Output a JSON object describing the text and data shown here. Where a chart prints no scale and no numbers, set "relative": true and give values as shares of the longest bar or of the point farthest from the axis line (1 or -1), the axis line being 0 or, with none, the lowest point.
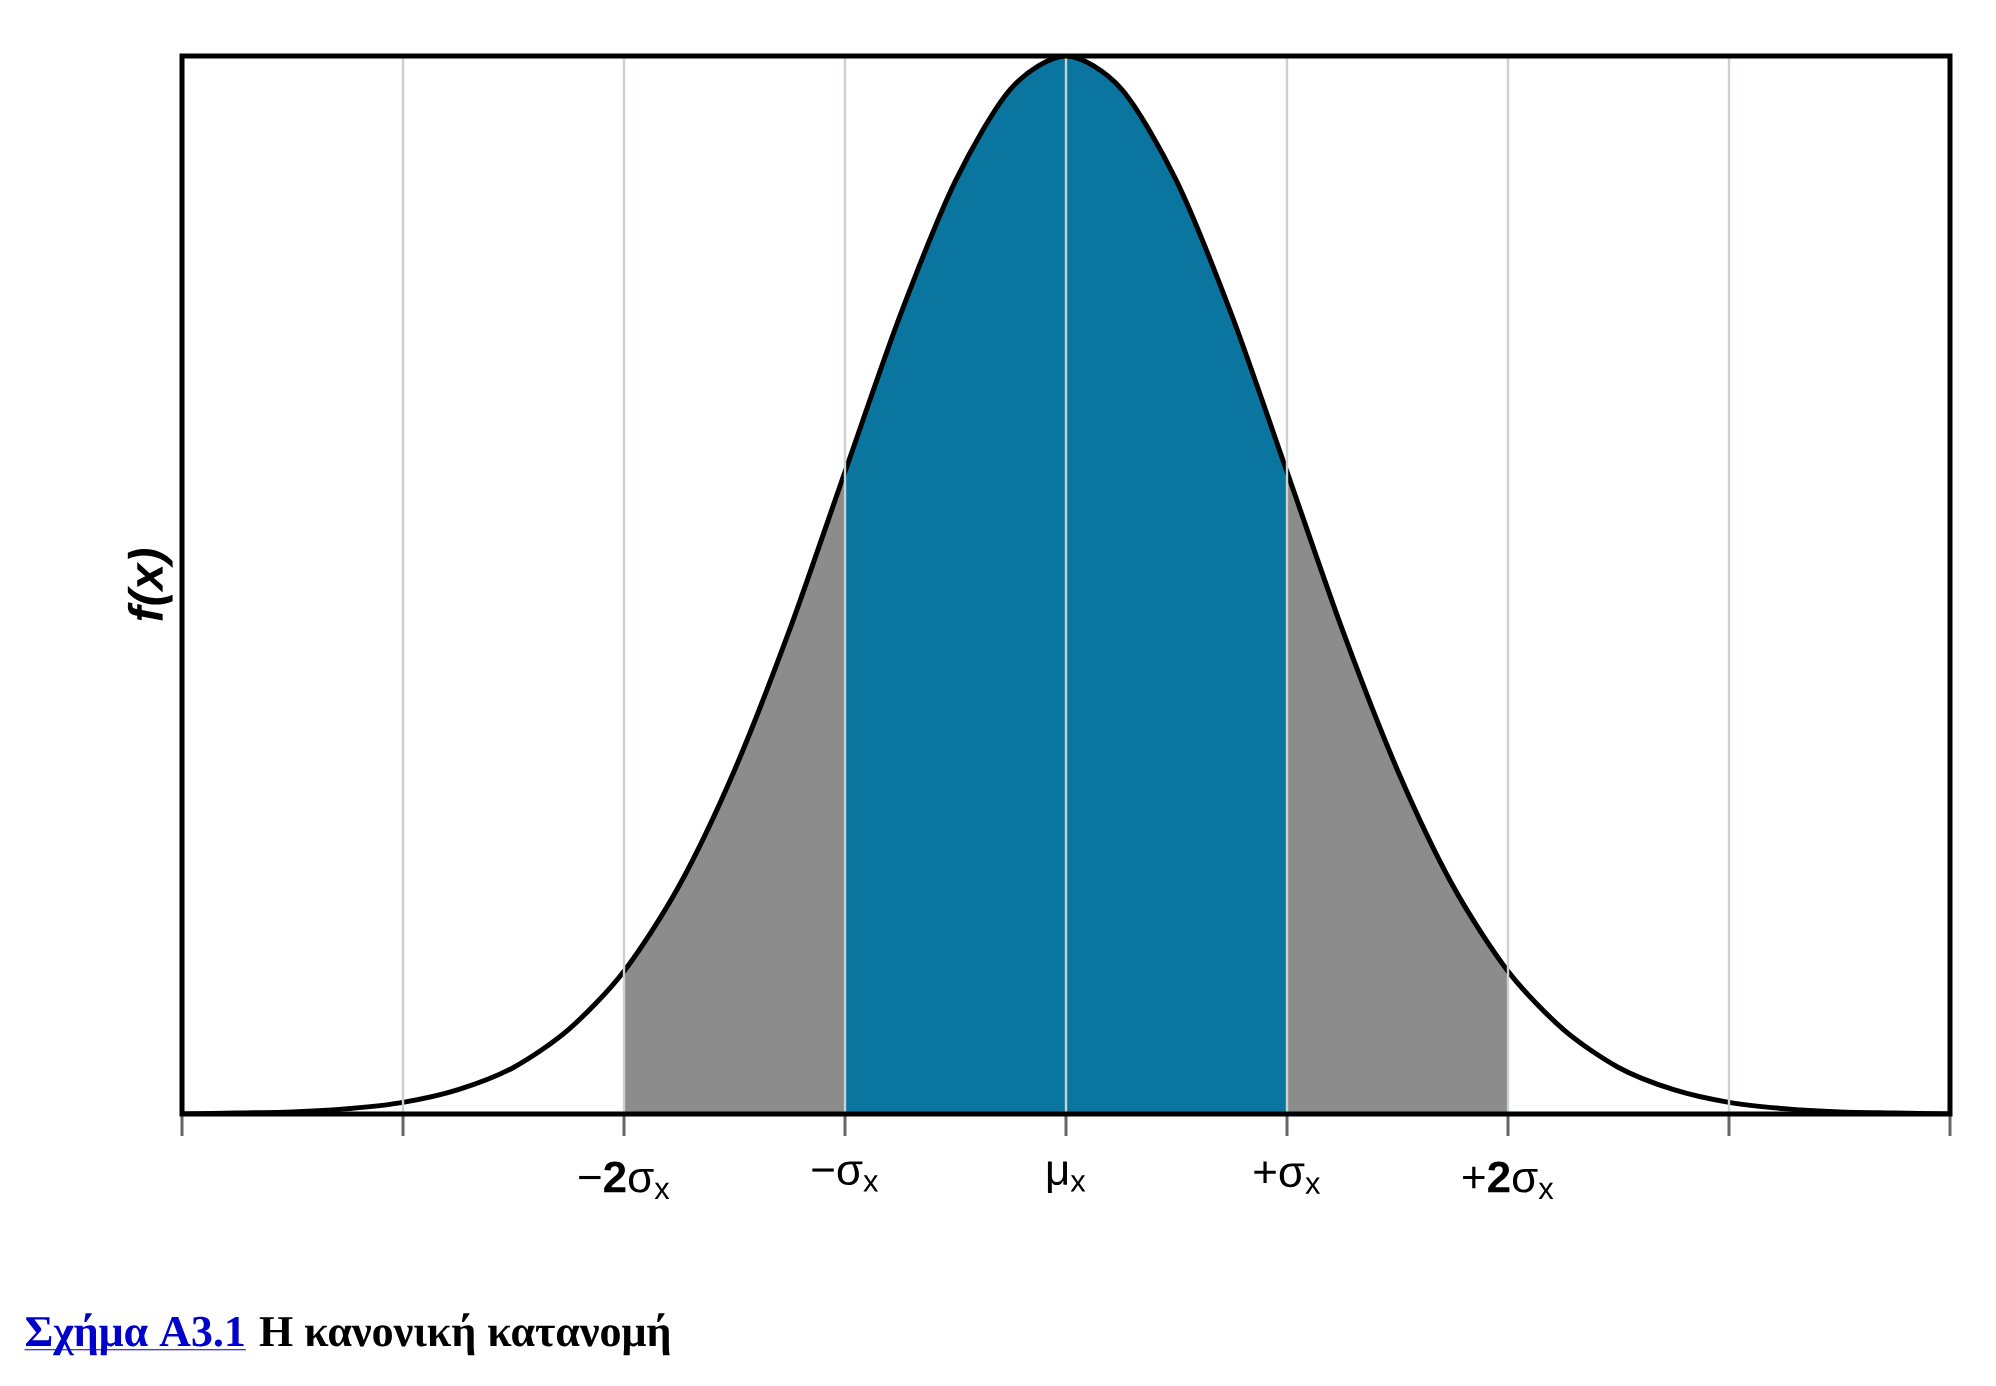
{
  "chart_data": {
    "type": "line",
    "relative": true,
    "ylabel": "f(x)",
    "xlim": [
      -4,
      4
    ],
    "xticks": [
      {
        "value": -4,
        "label": null
      },
      {
        "value": -3,
        "label": null
      },
      {
        "value": -2,
        "label": "−**2**σ$_{x}$"
      },
      {
        "value": -1,
        "label": "−σ$_{x}$"
      },
      {
        "value": 0,
        "label": "μ$_{x}$"
      },
      {
        "value": 1,
        "label": "+σ$_{x}$"
      },
      {
        "value": 2,
        "label": "+**2**σ$_{x}$"
      },
      {
        "value": 3,
        "label": null
      },
      {
        "value": 4,
        "label": null
      }
    ],
    "grid": "x",
    "series": [
      {
        "type": "area",
        "color": "#8c8c8c",
        "x": [
          -2,
          -1.75,
          -1.5,
          -1.25,
          -1
        ],
        "values": [
          0.135,
          0.216,
          0.325,
          0.458,
          0.607
        ]
      },
      {
        "type": "area",
        "color": "#0a76a0",
        "x": [
          -1,
          -0.75,
          -0.5,
          -0.25,
          0,
          0.25,
          0.5,
          0.75,
          1
        ],
        "values": [
          0.607,
          0.755,
          0.882,
          0.969,
          1,
          0.969,
          0.882,
          0.755,
          0.607
        ]
      },
      {
        "type": "area",
        "color": "#8c8c8c",
        "x": [
          1,
          1.25,
          1.5,
          1.75,
          2
        ],
        "values": [
          0.607,
          0.458,
          0.325,
          0.216,
          0.135
        ]
      },
      {
        "color": "#000000",
        "x": [
          -4,
          -3.75,
          -3.5,
          -3.25,
          -3,
          -2.75,
          -2.5,
          -2.25,
          -2,
          -1.75,
          -1.5,
          -1.25,
          -1,
          -0.75,
          -0.5,
          -0.25,
          0,
          0.25,
          0.5,
          0.75,
          1,
          1.25,
          1.5,
          1.75,
          2,
          2.25,
          2.5,
          2.75,
          3,
          3.25,
          3.5,
          3.75,
          4
        ],
        "values": [
          0,
          0.001,
          0.002,
          0.005,
          0.011,
          0.023,
          0.044,
          0.08,
          0.135,
          0.216,
          0.325,
          0.458,
          0.607,
          0.755,
          0.882,
          0.969,
          1,
          0.969,
          0.882,
          0.755,
          0.607,
          0.458,
          0.325,
          0.216,
          0.135,
          0.08,
          0.044,
          0.023,
          0.011,
          0.005,
          0.002,
          0.001,
          0
        ]
      }
    ],
    "annotations": [
      "Σχήμα A3.1",
      "Η κανονική κατανομή"
    ]
  }
}
